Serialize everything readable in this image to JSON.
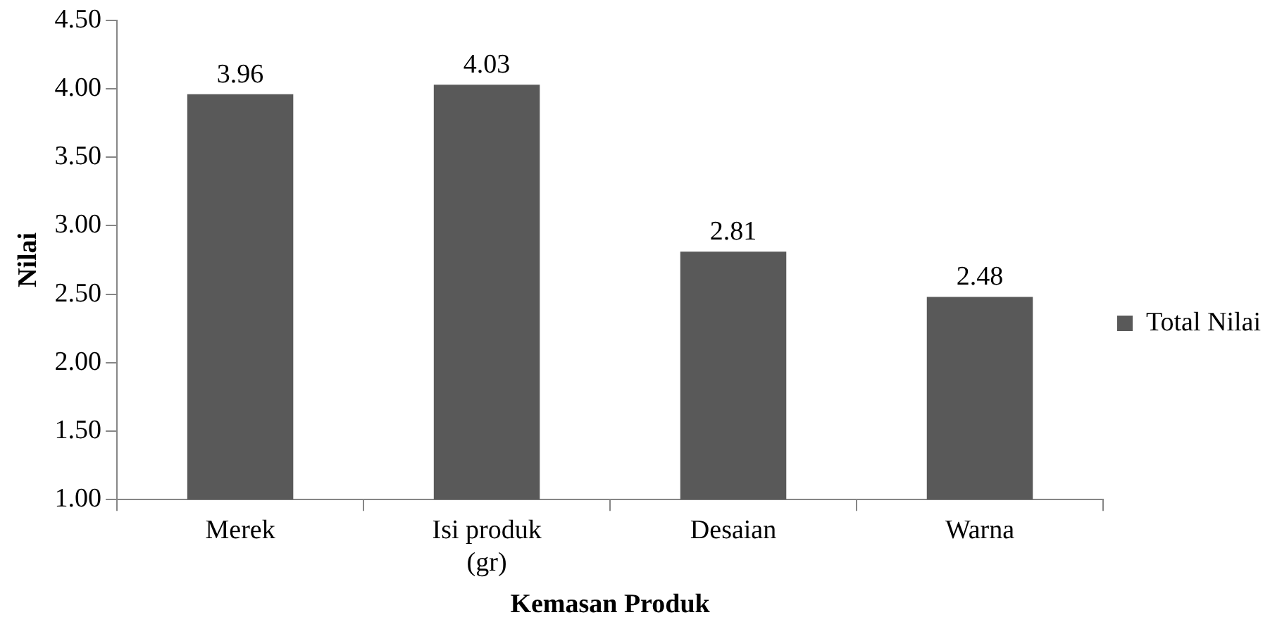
{
  "chart_data": {
    "type": "bar",
    "xlabel": "Kemasan Produk",
    "ylabel": "Nilai",
    "categories": [
      "Merek",
      "Isi produk (gr)",
      "Desaian",
      "Warna"
    ],
    "series": [
      {
        "name": "Total Nilai",
        "color": "#595959",
        "values": [
          3.96,
          4.03,
          2.81,
          2.48
        ]
      }
    ],
    "ylim": [
      1,
      4.5
    ],
    "yticks": [
      {
        "value": 1,
        "label": "1.00"
      },
      {
        "value": 1.5,
        "label": "1.50"
      },
      {
        "value": 2,
        "label": "2.00"
      },
      {
        "value": 2.5,
        "label": "2.50"
      },
      {
        "value": 3,
        "label": "3.00"
      },
      {
        "value": 3.5,
        "label": "3.50"
      },
      {
        "value": 4,
        "label": "4.00"
      },
      {
        "value": 4.5,
        "label": "4.50"
      }
    ],
    "grid": false,
    "legend": "right",
    "data_labels": true
  }
}
